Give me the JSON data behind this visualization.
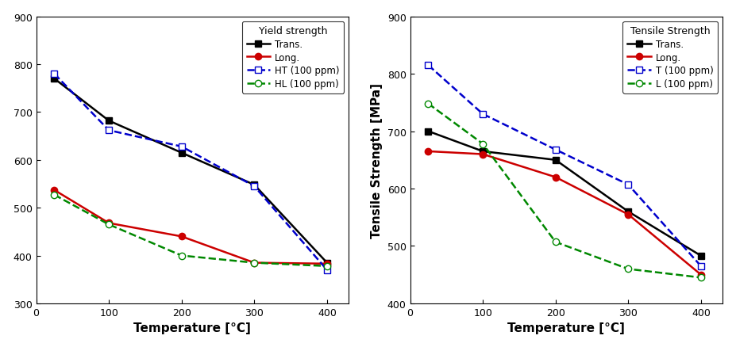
{
  "temp": [
    25,
    100,
    200,
    300,
    400
  ],
  "yield_trans": [
    770,
    682,
    615,
    548,
    385
  ],
  "yield_long": [
    537,
    468,
    440,
    385,
    383
  ],
  "yield_HT": [
    780,
    662,
    628,
    545,
    370
  ],
  "yield_HL": [
    527,
    465,
    400,
    385,
    378
  ],
  "tensile_trans": [
    700,
    665,
    650,
    560,
    483
  ],
  "tensile_long": [
    665,
    660,
    620,
    555,
    450
  ],
  "tensile_T100": [
    815,
    730,
    668,
    607,
    465
  ],
  "tensile_L100": [
    748,
    678,
    507,
    460,
    445
  ],
  "ylim_yield": [
    300,
    900
  ],
  "ylim_tensile": [
    400,
    900
  ],
  "ylabel_right": "Tensile Strength [MPa]",
  "xlabel": "Temperature [°C]",
  "legend_yield_title": "Yield strength",
  "legend_tensile_title": "Tensile Strength",
  "color_trans": "#000000",
  "color_long": "#cc0000",
  "color_HT": "#0000cc",
  "color_HL": "#008800"
}
